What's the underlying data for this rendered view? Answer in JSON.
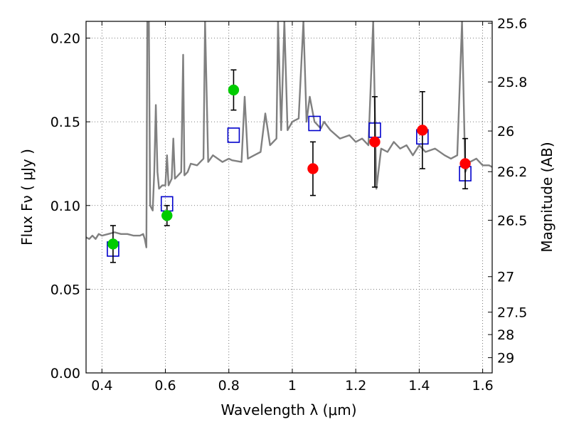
{
  "chart_data": {
    "type": "scatter",
    "title": "",
    "xlabel": "Wavelength  λ (μm)",
    "ylabel": "Flux  Fν  ( μJy )",
    "y2label": "Magnitude (AB)",
    "xlim": [
      0.35,
      1.63
    ],
    "ylim": [
      0.0,
      0.21
    ],
    "grid": true,
    "x_ticks": [
      0.4,
      0.6,
      0.8,
      1.0,
      1.2,
      1.4,
      1.6
    ],
    "x_tick_labels": [
      "0.4",
      "0.6",
      "0.8",
      "1",
      "1.2",
      "1.4",
      "1.6"
    ],
    "y_ticks": [
      0.0,
      0.05,
      0.1,
      0.15,
      0.2
    ],
    "y_tick_labels": [
      "0.00",
      "0.05",
      "0.10",
      "0.15",
      "0.20"
    ],
    "y2_ticks": [
      {
        "label": "25.6",
        "flux": 0.2089
      },
      {
        "label": "25.8",
        "flux": 0.1738
      },
      {
        "label": "26",
        "flux": 0.1445
      },
      {
        "label": "26.2",
        "flux": 0.1202
      },
      {
        "label": "26.5",
        "flux": 0.0912
      },
      {
        "label": "27",
        "flux": 0.0575
      },
      {
        "label": "27.5",
        "flux": 0.0363
      },
      {
        "label": "28",
        "flux": 0.0229
      },
      {
        "label": "29",
        "flux": 0.0091
      }
    ],
    "colors": {
      "model": "#808080",
      "model_photometry": "#0000cc",
      "observed_green": "#00cc00",
      "observed_red": "#ff0000",
      "errorbar": "#000000",
      "grid": "#555555"
    },
    "series": [
      {
        "kind": "line",
        "color": "#808080",
        "points": [
          [
            0.35,
            0.081
          ],
          [
            0.36,
            0.08
          ],
          [
            0.37,
            0.082
          ],
          [
            0.38,
            0.08
          ],
          [
            0.39,
            0.083
          ],
          [
            0.4,
            0.082
          ],
          [
            0.42,
            0.083
          ],
          [
            0.44,
            0.084
          ],
          [
            0.46,
            0.083
          ],
          [
            0.48,
            0.083
          ],
          [
            0.5,
            0.082
          ],
          [
            0.52,
            0.082
          ],
          [
            0.53,
            0.083
          ],
          [
            0.535,
            0.08
          ],
          [
            0.54,
            0.075
          ],
          [
            0.543,
            0.21
          ],
          [
            0.548,
            0.21
          ],
          [
            0.552,
            0.1
          ],
          [
            0.56,
            0.097
          ],
          [
            0.565,
            0.12
          ],
          [
            0.57,
            0.16
          ],
          [
            0.575,
            0.12
          ],
          [
            0.58,
            0.11
          ],
          [
            0.59,
            0.112
          ],
          [
            0.6,
            0.112
          ],
          [
            0.605,
            0.13
          ],
          [
            0.61,
            0.112
          ],
          [
            0.62,
            0.116
          ],
          [
            0.625,
            0.14
          ],
          [
            0.63,
            0.116
          ],
          [
            0.64,
            0.118
          ],
          [
            0.65,
            0.12
          ],
          [
            0.656,
            0.19
          ],
          [
            0.66,
            0.118
          ],
          [
            0.67,
            0.12
          ],
          [
            0.68,
            0.125
          ],
          [
            0.7,
            0.124
          ],
          [
            0.71,
            0.126
          ],
          [
            0.72,
            0.128
          ],
          [
            0.725,
            0.21
          ],
          [
            0.735,
            0.126
          ],
          [
            0.75,
            0.13
          ],
          [
            0.78,
            0.126
          ],
          [
            0.8,
            0.128
          ],
          [
            0.81,
            0.127
          ],
          [
            0.84,
            0.126
          ],
          [
            0.85,
            0.165
          ],
          [
            0.86,
            0.128
          ],
          [
            0.88,
            0.13
          ],
          [
            0.9,
            0.132
          ],
          [
            0.915,
            0.155
          ],
          [
            0.93,
            0.136
          ],
          [
            0.95,
            0.14
          ],
          [
            0.955,
            0.21
          ],
          [
            0.965,
            0.145
          ],
          [
            0.975,
            0.21
          ],
          [
            0.985,
            0.145
          ],
          [
            1.0,
            0.15
          ],
          [
            1.02,
            0.152
          ],
          [
            1.035,
            0.21
          ],
          [
            1.045,
            0.15
          ],
          [
            1.055,
            0.165
          ],
          [
            1.07,
            0.15
          ],
          [
            1.09,
            0.146
          ],
          [
            1.1,
            0.15
          ],
          [
            1.12,
            0.145
          ],
          [
            1.15,
            0.14
          ],
          [
            1.18,
            0.142
          ],
          [
            1.2,
            0.138
          ],
          [
            1.22,
            0.14
          ],
          [
            1.24,
            0.136
          ],
          [
            1.255,
            0.21
          ],
          [
            1.265,
            0.11
          ],
          [
            1.28,
            0.134
          ],
          [
            1.3,
            0.132
          ],
          [
            1.32,
            0.138
          ],
          [
            1.34,
            0.134
          ],
          [
            1.36,
            0.136
          ],
          [
            1.38,
            0.13
          ],
          [
            1.4,
            0.136
          ],
          [
            1.42,
            0.132
          ],
          [
            1.45,
            0.134
          ],
          [
            1.48,
            0.13
          ],
          [
            1.5,
            0.128
          ],
          [
            1.52,
            0.13
          ],
          [
            1.535,
            0.21
          ],
          [
            1.545,
            0.12
          ],
          [
            1.56,
            0.126
          ],
          [
            1.58,
            0.128
          ],
          [
            1.6,
            0.124
          ],
          [
            1.62,
            0.124
          ],
          [
            1.63,
            0.123
          ]
        ]
      },
      {
        "kind": "model_photometry",
        "marker": "open-square",
        "color": "#0000cc",
        "points": [
          [
            0.435,
            0.074
          ],
          [
            0.605,
            0.101
          ],
          [
            0.815,
            0.142
          ],
          [
            1.07,
            0.149
          ],
          [
            1.26,
            0.145
          ],
          [
            1.41,
            0.141
          ],
          [
            1.545,
            0.119
          ]
        ]
      },
      {
        "kind": "observed",
        "marker": "filled-circle",
        "color": "#00cc00",
        "points": [
          {
            "x": 0.435,
            "y": 0.077,
            "yerr": 0.011
          },
          {
            "x": 0.605,
            "y": 0.094,
            "yerr": 0.006
          },
          {
            "x": 0.815,
            "y": 0.169,
            "yerr": 0.012
          }
        ]
      },
      {
        "kind": "observed",
        "marker": "filled-circle",
        "color": "#ff0000",
        "points": [
          {
            "x": 1.065,
            "y": 0.122,
            "yerr": 0.016
          },
          {
            "x": 1.26,
            "y": 0.138,
            "yerr": 0.027
          },
          {
            "x": 1.41,
            "y": 0.145,
            "yerr": 0.023
          },
          {
            "x": 1.545,
            "y": 0.125,
            "yerr": 0.015
          }
        ]
      }
    ]
  }
}
